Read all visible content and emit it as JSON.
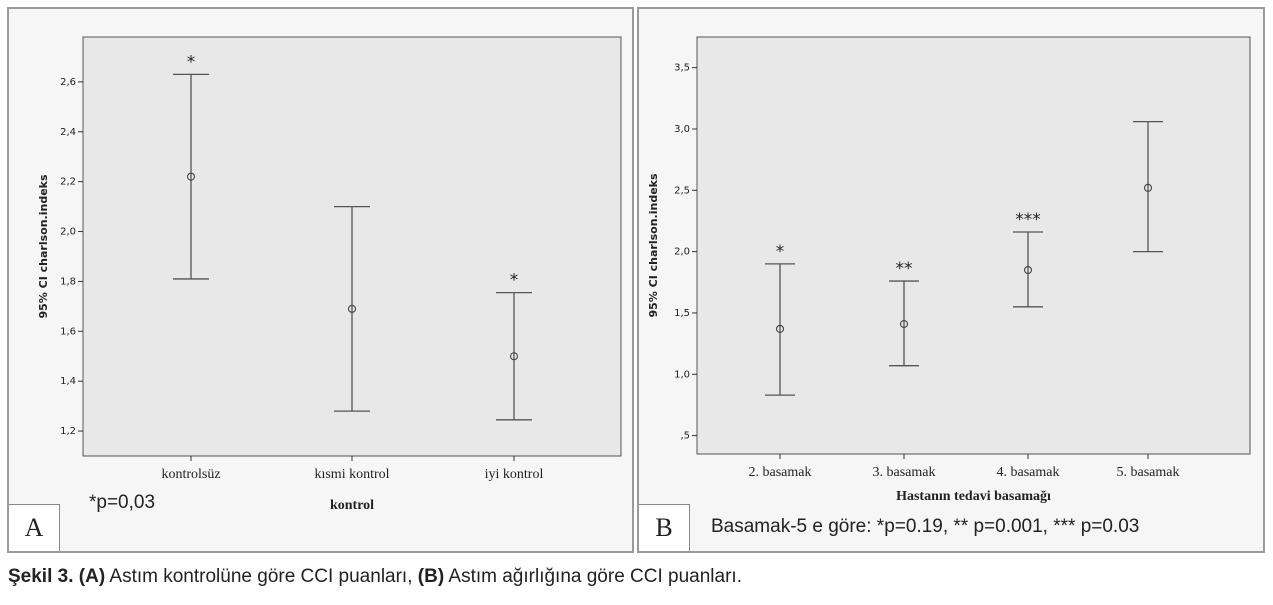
{
  "chart_data": [
    {
      "type": "errorbar",
      "panel_label": "A",
      "xlabel": "kontrol",
      "ylabel": "95% CI charlson.indeks",
      "ylim": [
        1.1,
        2.78
      ],
      "yticks": [
        1.2,
        1.4,
        1.6,
        1.8,
        2.0,
        2.2,
        2.4,
        2.6
      ],
      "ytick_labels": [
        "1,2",
        "1,4",
        "1,6",
        "1,8",
        "2,0",
        "2,2",
        "2,4",
        "2,6"
      ],
      "categories": [
        "kontrolsüz",
        "kısmi kontrol",
        "iyi kontrol"
      ],
      "means": [
        2.22,
        1.69,
        1.5
      ],
      "lower": [
        1.81,
        1.28,
        1.245
      ],
      "upper": [
        2.63,
        2.1,
        1.755
      ],
      "markers": [
        "*",
        "",
        "*"
      ],
      "note": "*p=0,03"
    },
    {
      "type": "errorbar",
      "panel_label": "B",
      "xlabel": "Hastanın tedavi basamağı",
      "ylabel": "95% CI charlson.indeks",
      "ylim": [
        0.35,
        3.75
      ],
      "yticks": [
        0.5,
        1.0,
        1.5,
        2.0,
        2.5,
        3.0,
        3.5
      ],
      "ytick_labels": [
        ",5",
        "1,0",
        "1,5",
        "2,0",
        "2,5",
        "3,0",
        "3,5"
      ],
      "categories": [
        "2. basamak",
        "3. basamak",
        "4. basamak",
        "5. basamak"
      ],
      "means": [
        1.37,
        1.41,
        1.85,
        2.52
      ],
      "lower": [
        0.83,
        1.07,
        1.55,
        2.0
      ],
      "upper": [
        1.9,
        1.76,
        2.16,
        3.06
      ],
      "markers": [
        "*",
        "**",
        "***",
        ""
      ],
      "note": "Basamak-5 e göre: *p=0.19, ** p=0.001, *** p=0.03"
    }
  ],
  "caption": {
    "label": "Şekil 3.",
    "a_tag": "(A)",
    "a_text": " Astım kontrolüne göre CCI puanları, ",
    "b_tag": "(B)",
    "b_text": " Astım ağırlığına göre CCI puanları."
  }
}
